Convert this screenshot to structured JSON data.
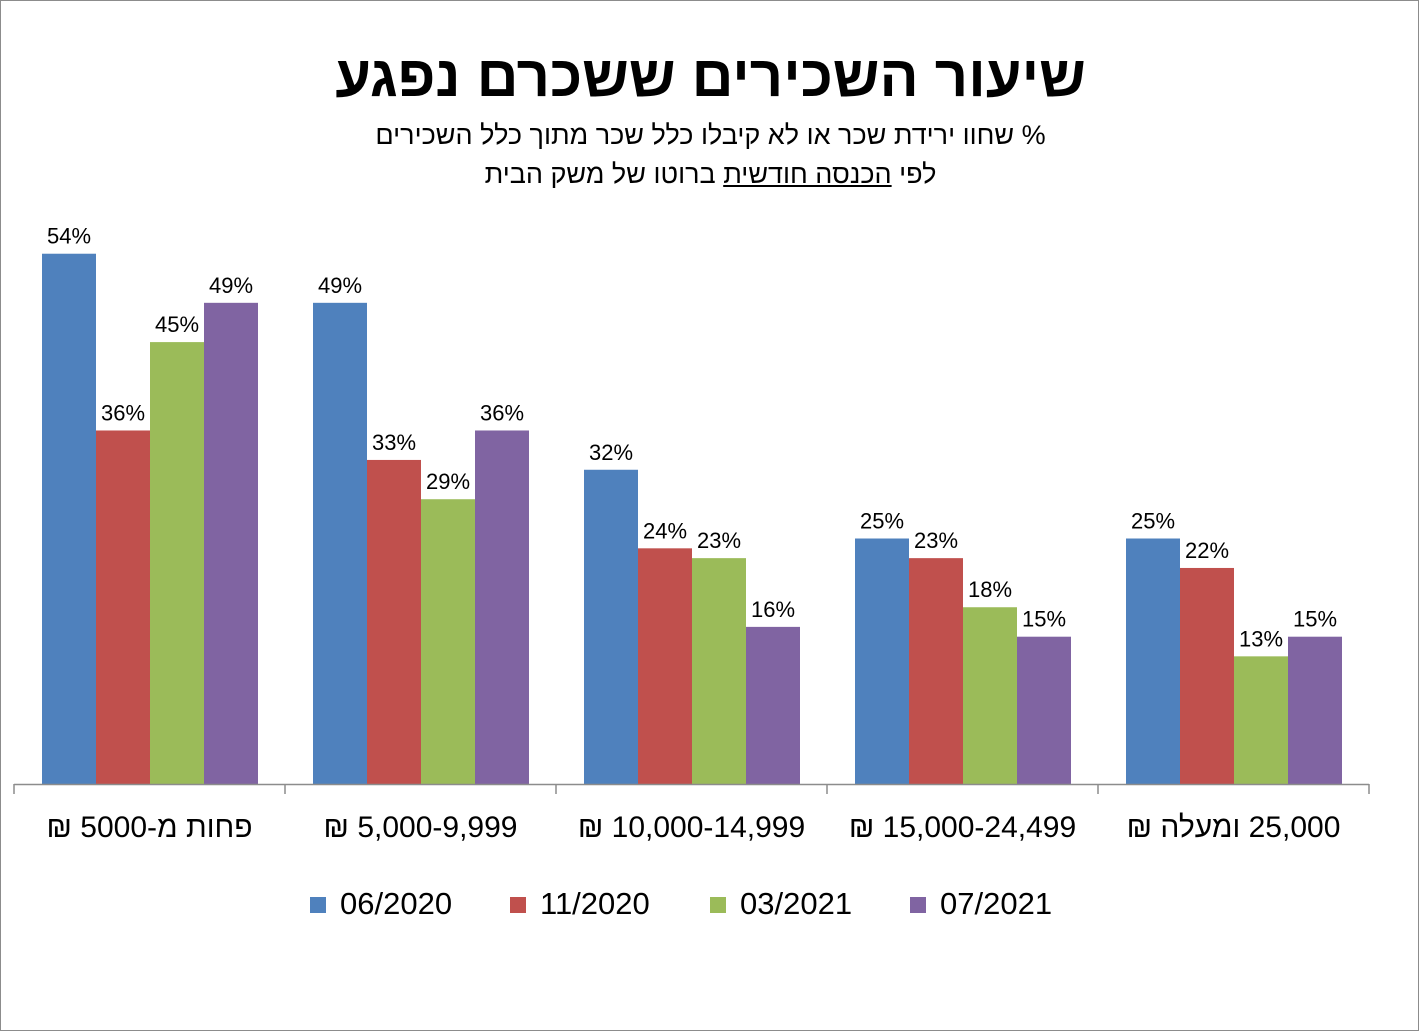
{
  "chart_data": {
    "type": "bar",
    "title": "שיעור השכירים ששכרם נפגע",
    "subtitle_line1": "% שחוו ירידת שכר או לא קיבלו כלל שכר מתוך כלל השכירים",
    "subtitle_line2_prefix": "לפי",
    "subtitle_line2_underlined": "הכנסה חודשית",
    "subtitle_line2_suffix": "ברוטו של משק הבית",
    "categories": [
      "פחות מ-5000 ₪",
      "5,000-9,999 ₪",
      "10,000-14,999 ₪",
      "15,000-24,499 ₪",
      "25,000 ומעלה ₪"
    ],
    "series": [
      {
        "name": "06/2020",
        "color": "#4f81bd",
        "values": [
          54,
          49,
          32,
          25,
          25
        ],
        "labels": [
          "54%",
          "49%",
          "32%",
          "25%",
          "25%"
        ]
      },
      {
        "name": "11/2020",
        "color": "#c0504d",
        "values": [
          36,
          33,
          24,
          23,
          22
        ],
        "labels": [
          "36%",
          "33%",
          "24%",
          "23%",
          "22%"
        ]
      },
      {
        "name": "03/2021",
        "color": "#9bbb59",
        "values": [
          45,
          29,
          23,
          18,
          13
        ],
        "labels": [
          "45%",
          "29%",
          "23%",
          "18%",
          "13%"
        ]
      },
      {
        "name": "07/2021",
        "color": "#8064a2",
        "values": [
          49,
          36,
          16,
          15,
          15
        ],
        "labels": [
          "49%",
          "36%",
          "16%",
          "15%",
          "15%"
        ]
      }
    ],
    "ylim": [
      0,
      60
    ],
    "grid": false,
    "legend_position": "bottom"
  }
}
